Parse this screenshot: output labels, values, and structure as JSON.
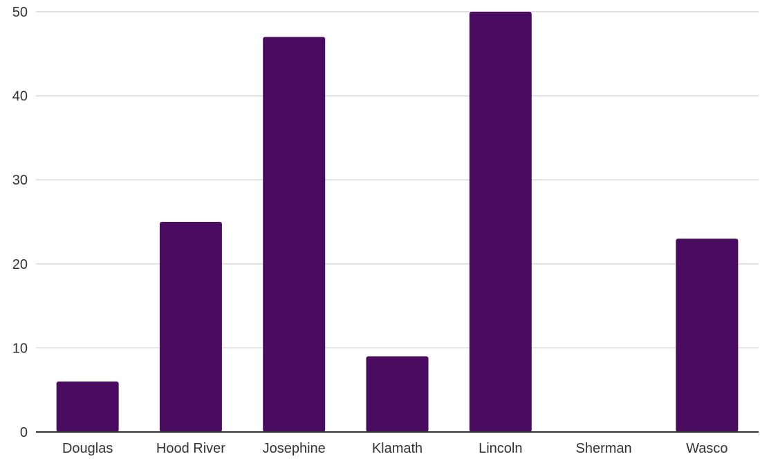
{
  "chart_data": {
    "type": "bar",
    "title": "",
    "xlabel": "",
    "ylabel": "",
    "categories": [
      "Douglas",
      "Hood River",
      "Josephine",
      "Klamath",
      "Lincoln",
      "Sherman",
      "Wasco"
    ],
    "values": [
      6,
      25,
      47,
      9,
      50,
      0,
      23
    ],
    "ylim": [
      0,
      50
    ],
    "yticks": [
      0,
      10,
      20,
      30,
      40,
      50
    ],
    "grid": true,
    "legend": "none",
    "colors": {
      "bar": "#4a0c60",
      "grid": "#d9d9d9",
      "axis": "#333333"
    }
  }
}
